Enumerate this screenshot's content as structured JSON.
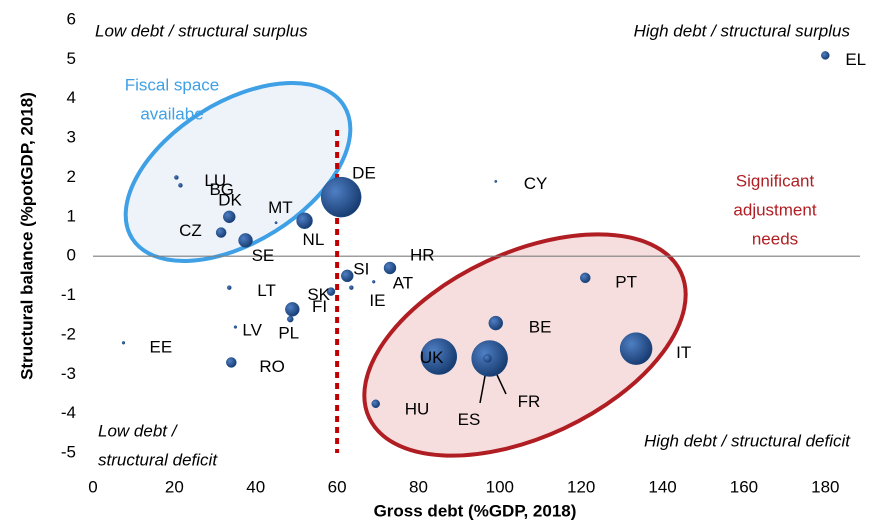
{
  "chart_data": {
    "type": "scatter",
    "x_label": "Gross debt (%GDP, 2018)",
    "y_label": "Structural balance  (%potGDP, 2018)",
    "categories": [
      "EL",
      "CY",
      "DE",
      "LU",
      "BG",
      "DK",
      "CZ",
      "SE",
      "MT",
      "NL",
      "HR",
      "SI",
      "AT",
      "IE",
      "FI",
      "SK",
      "LT",
      "PL",
      "LV",
      "EE",
      "RO",
      "HU",
      "UK",
      "FR",
      "ES",
      "BE",
      "PT",
      "IT"
    ],
    "x": [
      180,
      99,
      61,
      20.5,
      21.5,
      33.5,
      31.5,
      37.5,
      45,
      52,
      73,
      62.5,
      69,
      63.5,
      58.5,
      49,
      33.5,
      48.5,
      35,
      7.5,
      34,
      69.5,
      85,
      97.5,
      97,
      99,
      121,
      133.5
    ],
    "values": [
      5.1,
      1.9,
      1.5,
      2.0,
      1.8,
      1.0,
      0.6,
      0.4,
      0.85,
      0.9,
      -0.3,
      -0.5,
      -0.65,
      -0.8,
      -0.9,
      -1.35,
      -0.8,
      -1.6,
      -1.8,
      -2.2,
      -2.7,
      -3.75,
      -2.55,
      -2.6,
      -2.6,
      -1.7,
      -0.55,
      -2.35
    ],
    "sizes": [
      16,
      1,
      400,
      4,
      4,
      36,
      25,
      49,
      1,
      64,
      36,
      36,
      2,
      4,
      16,
      49,
      4,
      9,
      2,
      2,
      25,
      16,
      324,
      324,
      16,
      49,
      25,
      256
    ],
    "color": "#1f4e8c",
    "xlim": [
      0,
      190
    ],
    "xticks": [
      0,
      20,
      40,
      60,
      80,
      100,
      120,
      140,
      160,
      180
    ],
    "ylim": [
      -5,
      6
    ],
    "yticks": [
      -5,
      -4,
      -3,
      -2,
      -1,
      0,
      1,
      2,
      3,
      4,
      5,
      6
    ],
    "threshold_x": 60,
    "annotations": {
      "top_left": "Low debt / structural surplus",
      "top_right": "High debt / structural surplus",
      "bottom_left": [
        "Low debt /",
        "structural deficit"
      ],
      "bottom_right": "High debt / structural deficit",
      "fiscal_space": [
        "Fiscal space",
        "availabe"
      ],
      "adjustment": [
        "Significant",
        "adjustment",
        "needs"
      ]
    }
  }
}
